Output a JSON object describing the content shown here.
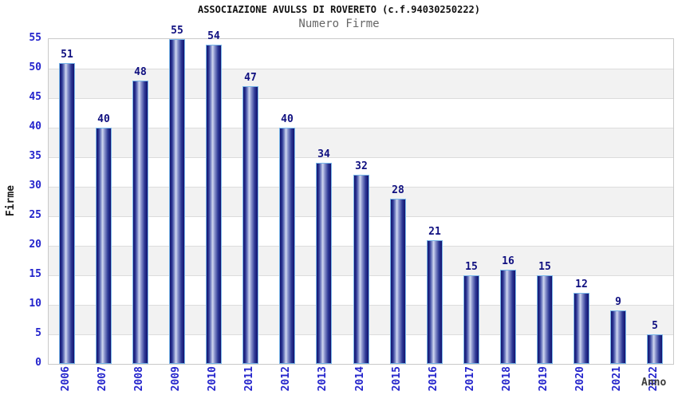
{
  "chart_data": {
    "type": "bar",
    "title": "ASSOCIAZIONE AVULSS DI ROVERETO (c.f.94030250222)",
    "subtitle": "Numero Firme",
    "xlabel": "Anno",
    "ylabel": "Firme",
    "categories": [
      "2006",
      "2007",
      "2008",
      "2009",
      "2010",
      "2011",
      "2012",
      "2013",
      "2014",
      "2015",
      "2016",
      "2017",
      "2018",
      "2019",
      "2020",
      "2021",
      "2022"
    ],
    "values": [
      51,
      40,
      48,
      55,
      54,
      47,
      40,
      34,
      32,
      28,
      21,
      15,
      16,
      15,
      12,
      9,
      5
    ],
    "ylim": [
      0,
      55
    ],
    "yticks": [
      0,
      5,
      10,
      15,
      20,
      25,
      30,
      35,
      40,
      45,
      50,
      55
    ],
    "grid": true,
    "legend": "none",
    "bar_value_labels_shown": true
  },
  "colors": {
    "bar_dark": "#12126e",
    "bar_mid": "#2c3794",
    "bar_highlight": "#d2d9f0",
    "bar_border": "#79b7e9",
    "axis_tick_blue": "#2424cc",
    "value_label_navy": "#101080",
    "title_black": "#111111",
    "subtitle_gray": "#666666",
    "band_gray": "#f2f2f2",
    "gridline_gray": "#dcdcdc",
    "frame_gray": "#c9c9c9",
    "axis_title_dark": "#3d3d3d"
  }
}
